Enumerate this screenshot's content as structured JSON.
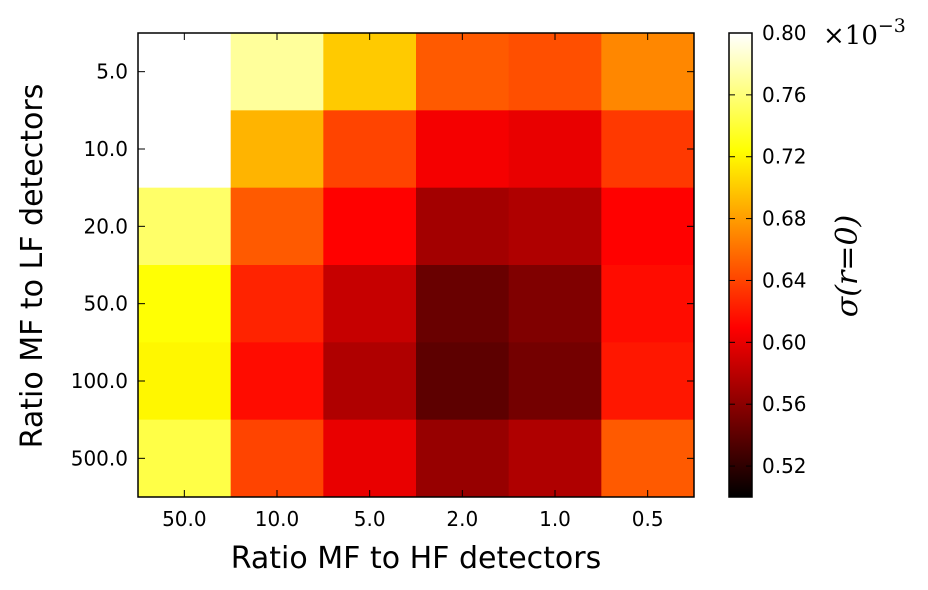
{
  "chart_data": {
    "type": "heatmap",
    "x_categories": [
      "50.0",
      "10.0",
      "5.0",
      "2.0",
      "1.0",
      "0.5"
    ],
    "y_categories": [
      "5.0",
      "10.0",
      "20.0",
      "50.0",
      "100.0",
      "500.0"
    ],
    "xlabel": "Ratio MF to HF detectors",
    "ylabel": "Ratio MF to LF detectors",
    "colorbar": {
      "label": "σ(r=0)",
      "multiplier_label": "×10",
      "multiplier_exponent": "−3",
      "range": [
        0.5,
        0.8
      ],
      "ticks": [
        "0.52",
        "0.56",
        "0.60",
        "0.64",
        "0.68",
        "0.72",
        "0.76",
        "0.80"
      ],
      "colormap": "hot"
    },
    "values": [
      [
        0.8,
        0.77,
        0.7,
        0.65,
        0.645,
        0.67
      ],
      [
        0.8,
        0.69,
        0.64,
        0.605,
        0.6,
        0.635
      ],
      [
        0.755,
        0.65,
        0.61,
        0.57,
        0.575,
        0.61
      ],
      [
        0.725,
        0.625,
        0.585,
        0.545,
        0.555,
        0.615
      ],
      [
        0.72,
        0.615,
        0.575,
        0.54,
        0.55,
        0.62
      ],
      [
        0.745,
        0.64,
        0.6,
        0.565,
        0.575,
        0.65
      ]
    ]
  }
}
